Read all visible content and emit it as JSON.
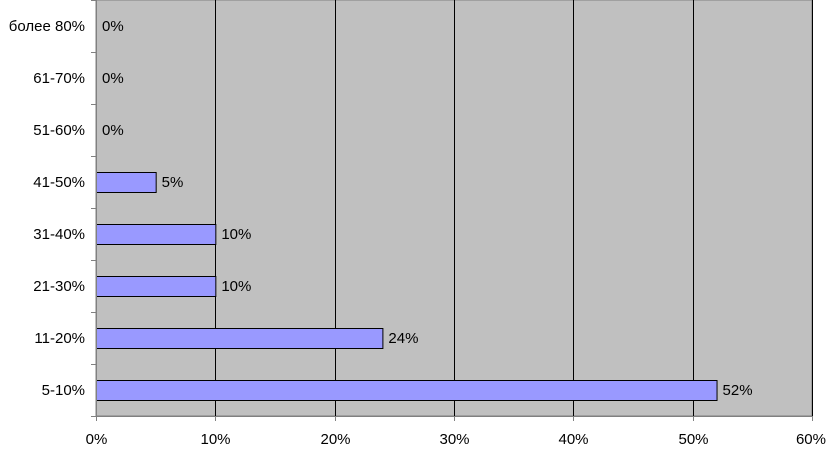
{
  "chart_data": {
    "type": "bar",
    "orientation": "horizontal",
    "title": "",
    "xlabel": "",
    "ylabel": "",
    "categories": [
      "5-10%",
      "11-20%",
      "21-30%",
      "31-40%",
      "41-50%",
      "51-60%",
      "61-70%",
      "более 80%"
    ],
    "values": [
      52,
      24,
      10,
      10,
      5,
      0,
      0,
      0
    ],
    "data_labels": [
      "52%",
      "24%",
      "10%",
      "10%",
      "5%",
      "0%",
      "0%",
      "0%"
    ],
    "x_ticks": [
      0,
      10,
      20,
      30,
      40,
      50,
      60
    ],
    "x_tick_labels": [
      "0%",
      "10%",
      "20%",
      "30%",
      "40%",
      "50%",
      "60%"
    ],
    "xlim": [
      0,
      60
    ],
    "grid": "vertical",
    "legend": "none",
    "colors": {
      "plot_background": "#c0c0c0",
      "bar_fill": "#9999ff",
      "bar_stroke": "#000000",
      "grid": "#000000",
      "axis": "#808080"
    }
  }
}
